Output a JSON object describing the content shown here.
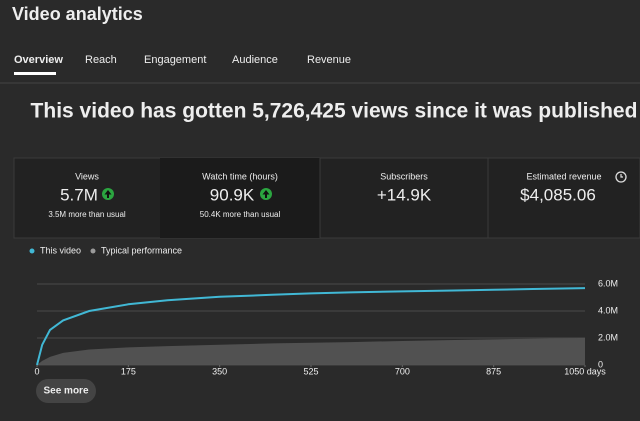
{
  "header": {
    "title": "Video analytics"
  },
  "tabs": [
    "Overview",
    "Reach",
    "Engagement",
    "Audience",
    "Revenue"
  ],
  "headline": "This video has gotten 5,726,425 views since it was published",
  "cards": [
    {
      "label": "Views",
      "value": "5.7M",
      "note": "3.5M more than usual"
    },
    {
      "label": "Watch time (hours)",
      "value": "90.9K",
      "note": "50.4K more than usual"
    },
    {
      "label": "Subscribers",
      "value": "+14.9K"
    },
    {
      "label": "Estimated revenue",
      "value": "$4,085.06"
    }
  ],
  "chart_data": {
    "type": "line",
    "x": [
      0,
      10,
      25,
      50,
      100,
      175,
      250,
      350,
      450,
      525,
      600,
      700,
      800,
      875,
      950,
      1050
    ],
    "series": [
      {
        "name": "This video",
        "color": "#41b8d5",
        "values": [
          0,
          1500000,
          2600000,
          3300000,
          4000000,
          4500000,
          4800000,
          5050000,
          5200000,
          5300000,
          5380000,
          5450000,
          5520000,
          5570000,
          5630000,
          5700000
        ]
      },
      {
        "name": "Typical performance",
        "color": "#9a9a9a",
        "fill": "#555555",
        "values": [
          0,
          300000,
          600000,
          900000,
          1150000,
          1300000,
          1400000,
          1500000,
          1600000,
          1650000,
          1700000,
          1780000,
          1850000,
          1900000,
          1950000,
          2000000
        ]
      }
    ],
    "xlim": [
      0,
      1050
    ],
    "xticks": [
      0,
      175,
      350,
      525,
      700,
      875,
      {
        "value": 1050,
        "label": "1050 days"
      }
    ],
    "ylim": [
      0,
      6000000
    ],
    "yticks": [
      {
        "value": 0,
        "label": "0"
      },
      {
        "value": 2000000,
        "label": "2.0M"
      },
      {
        "value": 4000000,
        "label": "4.0M"
      },
      {
        "value": 6000000,
        "label": "6.0M"
      }
    ],
    "grid": true
  },
  "button": "See more"
}
